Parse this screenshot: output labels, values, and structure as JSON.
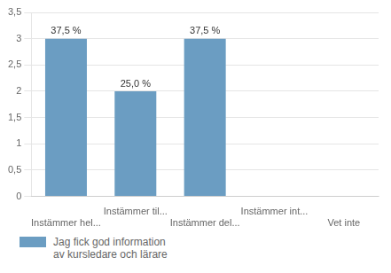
{
  "chart_data": {
    "type": "bar",
    "categories": [
      "Instämmer hel...",
      "Instämmer til...",
      "Instämmer del...",
      "Instämmer int...",
      "Vet inte"
    ],
    "series": [
      {
        "name": "Jag fick god information\nav kursledare och lärare",
        "color": "#6b9dc2",
        "values": [
          3.0,
          2.0,
          3.0,
          0.0,
          0.0
        ],
        "value_labels": [
          "37,5 %",
          "25,0 %",
          "37,5 %",
          null,
          null
        ]
      }
    ],
    "ylim": [
      0,
      3.5
    ],
    "yticks": [
      0,
      {
        "value": 0.5,
        "label": "0,5"
      },
      1,
      {
        "value": 1.5,
        "label": "1,5"
      },
      2,
      {
        "value": 2.5,
        "label": "2,5"
      },
      3,
      {
        "value": 3.5,
        "label": "3,5"
      }
    ],
    "grid": true,
    "legend": "lower left"
  }
}
